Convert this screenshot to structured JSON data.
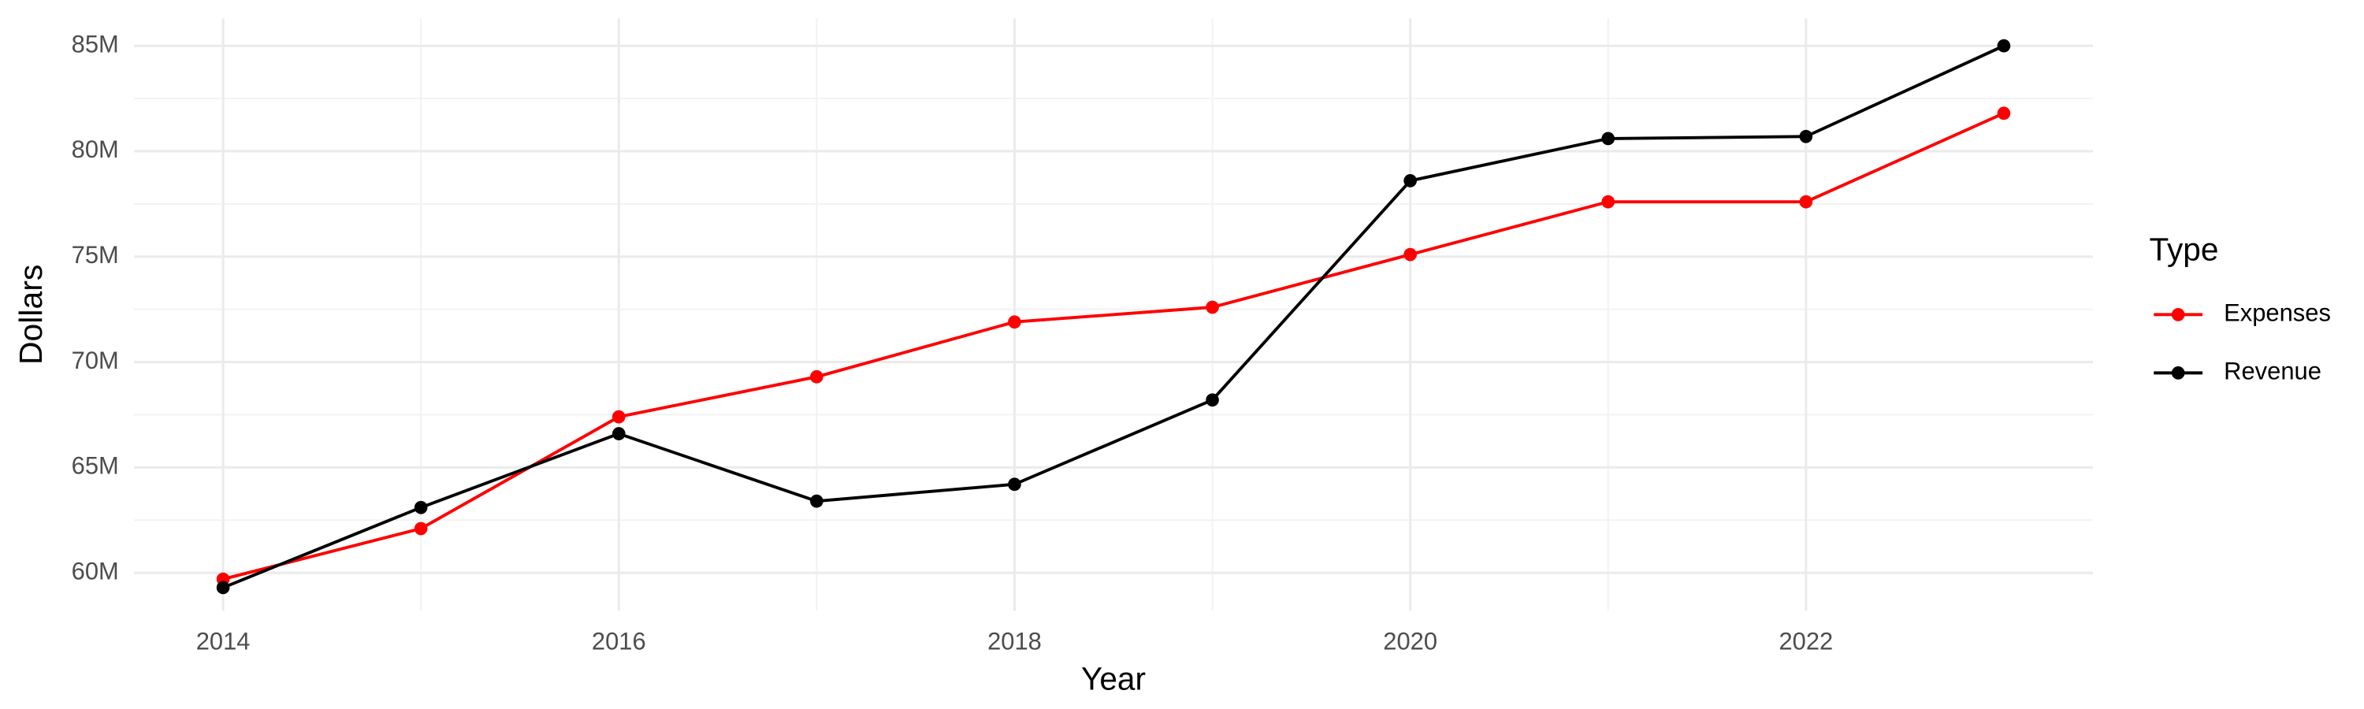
{
  "chart_data": {
    "type": "line",
    "x_label": "Year",
    "y_label": "Dollars",
    "x": [
      2014,
      2015,
      2016,
      2017,
      2018,
      2019,
      2020,
      2021,
      2022,
      2023
    ],
    "series": [
      {
        "name": "Expenses",
        "color": "#ff0000",
        "values": [
          59700000,
          62100000,
          67400000,
          69300000,
          71900000,
          72600000,
          75100000,
          77600000,
          77600000,
          81800000
        ]
      },
      {
        "name": "Revenue",
        "color": "#000000",
        "values": [
          59300000,
          63100000,
          66600000,
          63400000,
          64200000,
          68200000,
          78600000,
          80600000,
          80700000,
          85000000
        ]
      }
    ],
    "xlim": [
      2013.55,
      2023.45
    ],
    "xticks": [
      2014,
      2016,
      2018,
      2020,
      2022
    ],
    "ylim": [
      58200000,
      86300000
    ],
    "yticks": [
      {
        "value": 60000000,
        "label": "60M"
      },
      {
        "value": 65000000,
        "label": "65M"
      },
      {
        "value": 70000000,
        "label": "70M"
      },
      {
        "value": 75000000,
        "label": "75M"
      },
      {
        "value": 80000000,
        "label": "80M"
      },
      {
        "value": 85000000,
        "label": "85M"
      }
    ],
    "legend_title": "Type",
    "legend": "right",
    "grid": true
  }
}
